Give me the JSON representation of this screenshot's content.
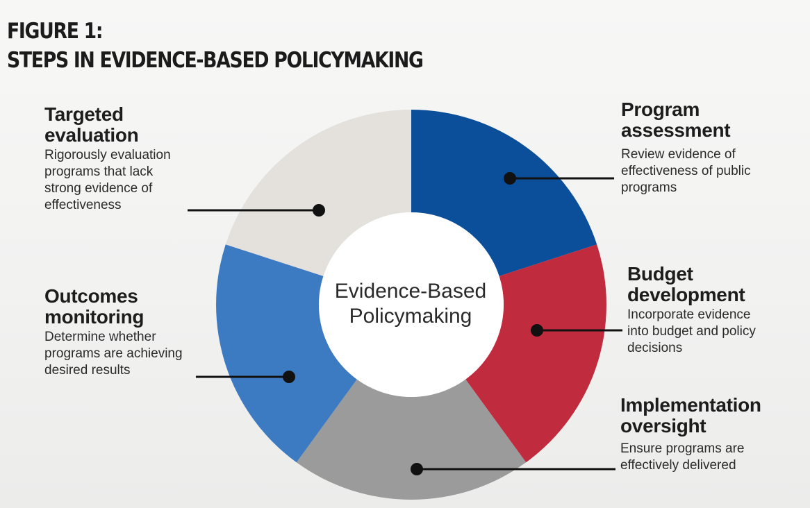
{
  "figure": {
    "title_line1": "FIGURE 1:",
    "title_line2": "STEPS IN EVIDENCE-BASED POLICYMAKING"
  },
  "center": {
    "line1": "Evidence-Based",
    "line2": "Policymaking"
  },
  "steps": [
    {
      "key": "program",
      "title_line1": "Program",
      "title_line2": "assessment",
      "desc": [
        "Review evidence of",
        "effectiveness of public",
        "programs"
      ],
      "color": "#0b4f9a"
    },
    {
      "key": "budget",
      "title_line1": "Budget",
      "title_line2": "development",
      "desc": [
        "Incorporate evidence",
        "into budget and policy",
        "decisions"
      ],
      "color": "#c02b3e"
    },
    {
      "key": "implementation",
      "title_line1": "Implementation",
      "title_line2": "oversight",
      "desc": [
        "Ensure programs are",
        "effectively delivered"
      ],
      "color": "#9b9b9b"
    },
    {
      "key": "outcomes",
      "title_line1": "Outcomes",
      "title_line2": "monitoring",
      "desc": [
        "Determine whether",
        "programs are achieving",
        "desired results"
      ],
      "color": "#3c7bc1"
    },
    {
      "key": "targeted",
      "title_line1": "Targeted",
      "title_line2": "evaluation",
      "desc": [
        "Rigorously evaluation",
        "programs that lack",
        "strong evidence of",
        "effectiveness"
      ],
      "color": "#e4e1dc"
    }
  ],
  "colors": {
    "background": "#f3f3f2",
    "hub": "#ffffff",
    "connector": "#111111"
  }
}
